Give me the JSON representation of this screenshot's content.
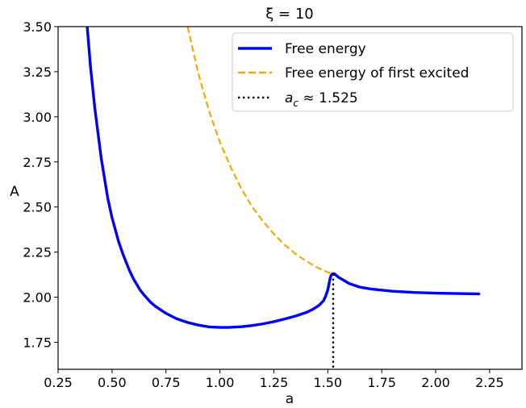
{
  "chart_data": {
    "type": "line",
    "title": "ξ = 10",
    "xlabel": "a",
    "ylabel": "A",
    "xlim": [
      0.25,
      2.4
    ],
    "ylim": [
      1.6,
      3.5
    ],
    "xticks": [
      "0.25",
      "0.50",
      "0.75",
      "1.00",
      "1.25",
      "1.50",
      "1.75",
      "2.00",
      "2.25"
    ],
    "yticks": [
      "1.75",
      "2.00",
      "2.25",
      "2.50",
      "2.75",
      "3.00",
      "3.25",
      "3.50"
    ],
    "grid": false,
    "legend_position": "top-right",
    "series": [
      {
        "name": "Free energy",
        "color": "#0000ff",
        "style": "solid",
        "x": [
          0.385,
          0.4,
          0.42,
          0.45,
          0.48,
          0.5,
          0.53,
          0.55,
          0.58,
          0.6,
          0.63,
          0.65,
          0.68,
          0.7,
          0.75,
          0.8,
          0.85,
          0.9,
          0.95,
          1.0,
          1.04,
          1.1,
          1.15,
          1.2,
          1.25,
          1.3,
          1.35,
          1.4,
          1.43,
          1.46,
          1.48,
          1.49,
          1.5,
          1.505,
          1.51,
          1.515,
          1.52,
          1.525,
          1.53,
          1.55,
          1.6,
          1.65,
          1.7,
          1.8,
          1.9,
          2.0,
          2.1,
          2.2
        ],
        "y": [
          3.5,
          3.28,
          3.05,
          2.77,
          2.55,
          2.44,
          2.31,
          2.24,
          2.15,
          2.1,
          2.04,
          2.01,
          1.97,
          1.95,
          1.91,
          1.88,
          1.86,
          1.845,
          1.835,
          1.832,
          1.832,
          1.836,
          1.843,
          1.852,
          1.864,
          1.879,
          1.895,
          1.915,
          1.932,
          1.955,
          1.98,
          2.005,
          2.04,
          2.07,
          2.1,
          2.12,
          2.128,
          2.13,
          2.13,
          2.11,
          2.075,
          2.055,
          2.045,
          2.033,
          2.026,
          2.022,
          2.02,
          2.018
        ]
      },
      {
        "name": "Free energy of first excited",
        "color": "#ffa500",
        "style": "dashed",
        "x": [
          0.85,
          0.9,
          0.95,
          1.0,
          1.05,
          1.1,
          1.15,
          1.2,
          1.25,
          1.3,
          1.35,
          1.4,
          1.45,
          1.5,
          1.525
        ],
        "y": [
          3.5,
          3.24,
          3.03,
          2.86,
          2.72,
          2.6,
          2.5,
          2.42,
          2.35,
          2.29,
          2.24,
          2.2,
          2.165,
          2.138,
          2.13
        ]
      },
      {
        "name": "$a_c \\approx 1.525$",
        "color": "#000000",
        "style": "dotted",
        "x": [
          1.525,
          1.525
        ],
        "y": [
          2.13,
          1.6
        ]
      }
    ]
  },
  "legend": {
    "items": [
      {
        "text": "Free energy"
      },
      {
        "text": "Free energy of first excited"
      },
      {
        "prefix": "a",
        "sub": "c",
        "suffix": " ≈ 1.525"
      }
    ]
  }
}
